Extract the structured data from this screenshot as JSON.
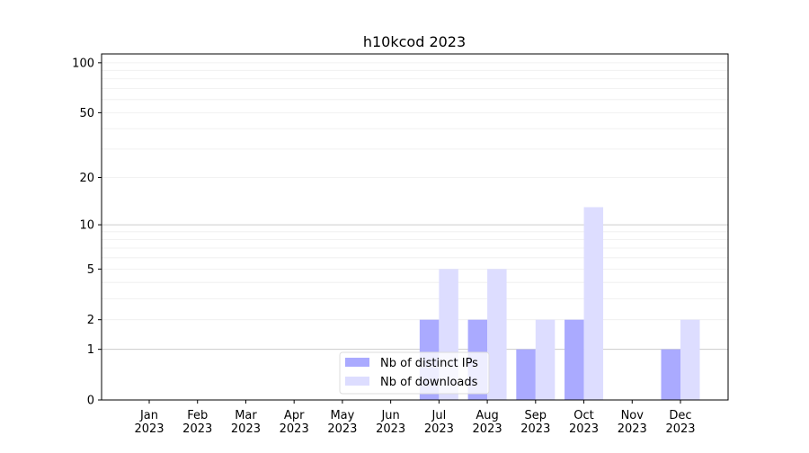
{
  "chart_data": {
    "type": "bar",
    "title": "h10kcod 2023",
    "categories": [
      "Jan\n2023",
      "Feb\n2023",
      "Mar\n2023",
      "Apr\n2023",
      "May\n2023",
      "Jun\n2023",
      "Jul\n2023",
      "Aug\n2023",
      "Sep\n2023",
      "Oct\n2023",
      "Nov\n2023",
      "Dec\n2023"
    ],
    "series": [
      {
        "name": "Nb of distinct IPs",
        "color": "#aaaaff",
        "values": [
          0,
          0,
          0,
          0,
          0,
          0,
          2,
          2,
          1,
          2,
          0,
          1
        ]
      },
      {
        "name": "Nb of downloads",
        "color": "#ddddff",
        "values": [
          0,
          0,
          0,
          0,
          0,
          0,
          5,
          5,
          2,
          13,
          0,
          2
        ]
      }
    ],
    "yscale": "log(1+y)",
    "yticks": [
      0,
      1,
      2,
      5,
      10,
      20,
      50,
      100
    ],
    "ylim": [
      0,
      113
    ],
    "grid": true,
    "legend": "lower-center",
    "xlabel": "",
    "ylabel": ""
  }
}
